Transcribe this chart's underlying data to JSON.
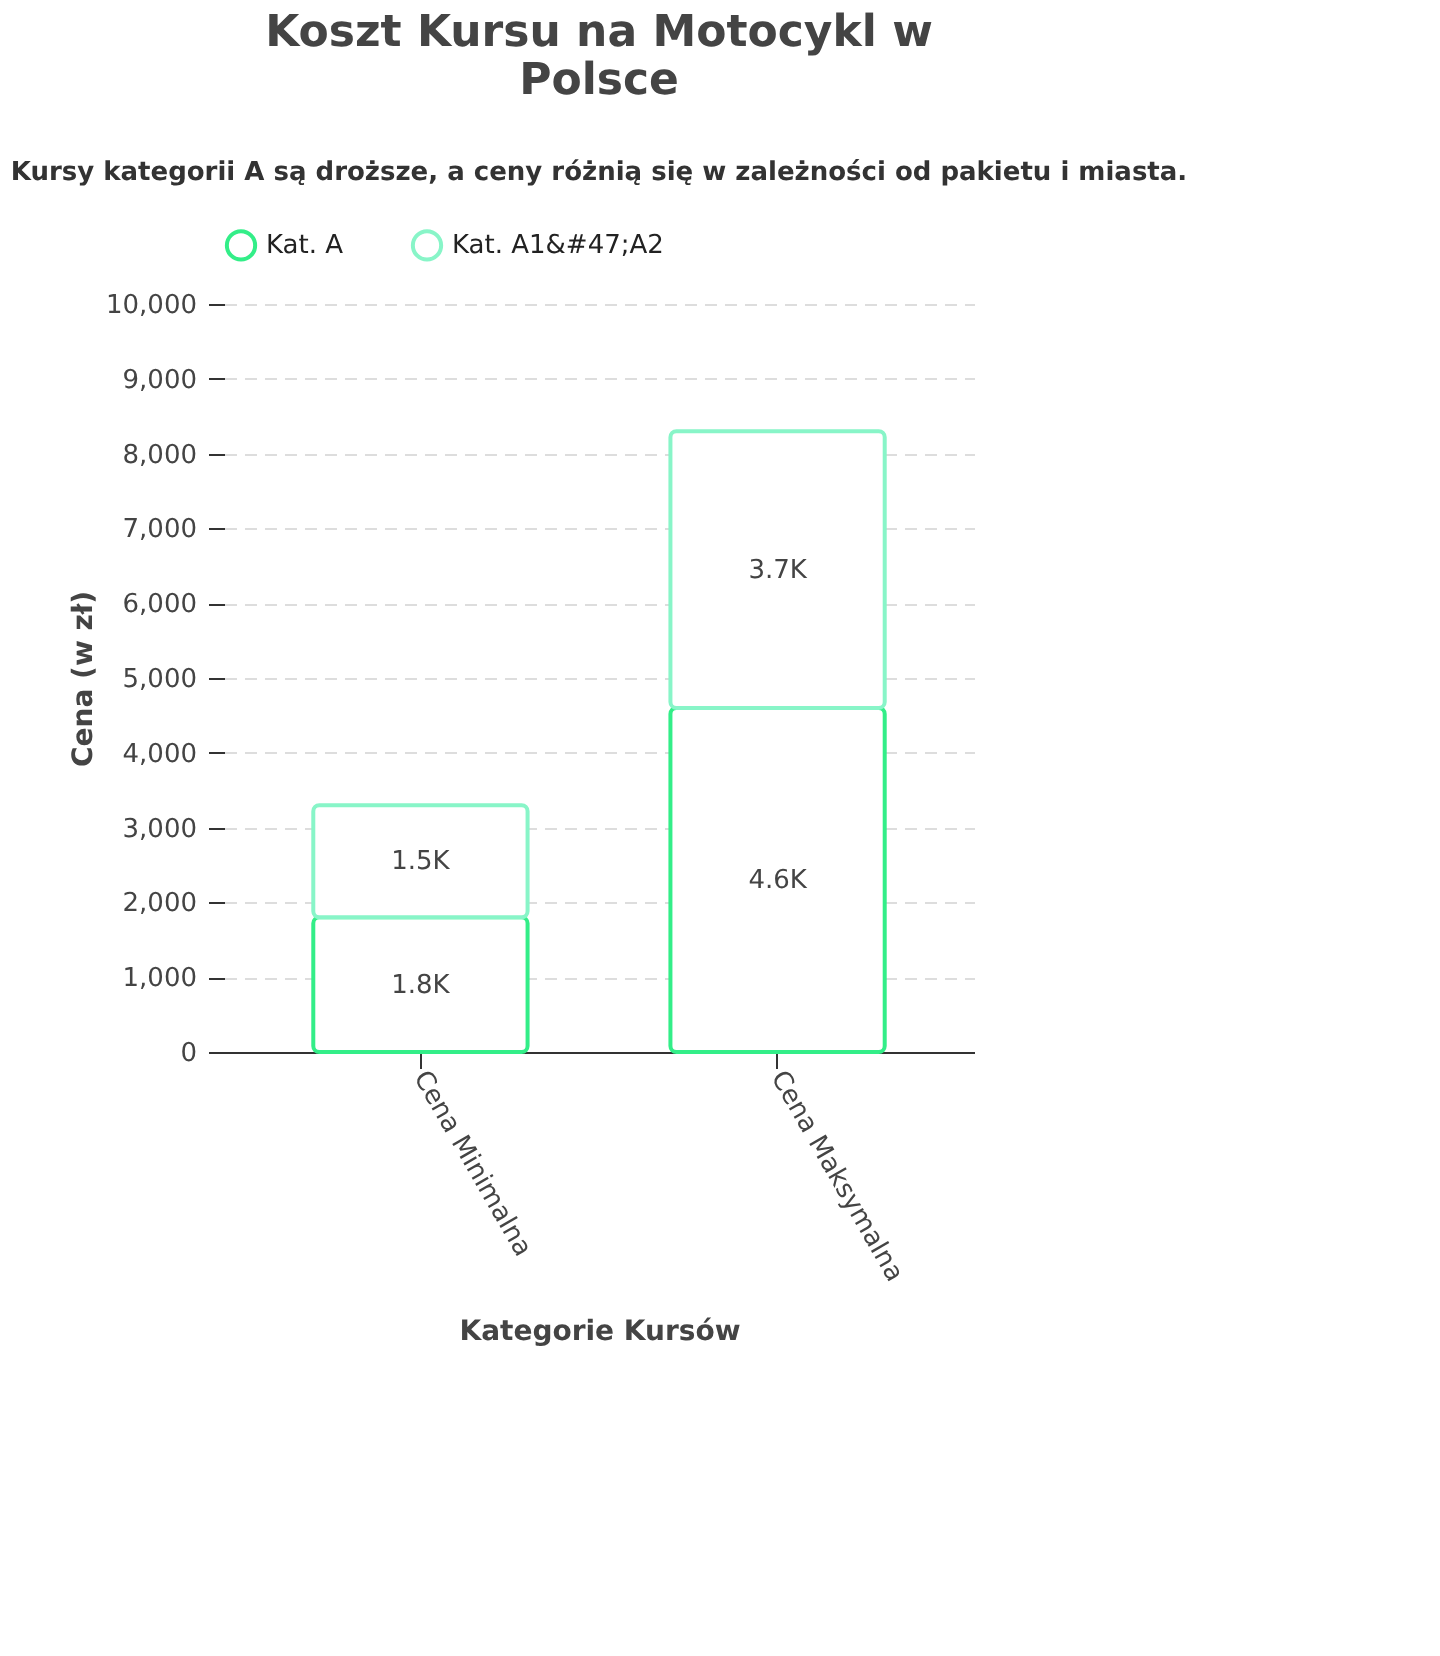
{
  "chart_data": {
    "type": "bar",
    "title": "Koszt Kursu na Motocykl w Polsce",
    "subtitle": "Kursy kategorii A są droższe, a ceny różnią się w zależności od pakietu i miasta.",
    "xlabel": "Kategorie Kursów",
    "ylabel": "Cena (w zł)",
    "categories": [
      "Cena Minimalna",
      "Cena Maksymalna"
    ],
    "stacked": true,
    "series": [
      {
        "name": "Kat. A",
        "color": "#33ee88",
        "values": [
          1800,
          4600
        ],
        "value_labels": [
          "1.8K",
          "4.6K"
        ]
      },
      {
        "name": "Kat. A1&#47;A2",
        "color": "#88f5c8",
        "values": [
          1500,
          3700
        ],
        "value_labels": [
          "1.5K",
          "3.7K"
        ]
      }
    ],
    "ylim": [
      0,
      10000
    ],
    "yticks": [
      0,
      {
        "value": 1000,
        "label": "1,000"
      },
      {
        "value": 2000,
        "label": "2,000"
      },
      {
        "value": 3000,
        "label": "3,000"
      },
      {
        "value": 4000,
        "label": "4,000"
      },
      {
        "value": 5000,
        "label": "5,000"
      },
      {
        "value": 6000,
        "label": "6,000"
      },
      {
        "value": 7000,
        "label": "7,000"
      },
      {
        "value": 8000,
        "label": "8,000"
      },
      {
        "value": 9000,
        "label": "9,000"
      },
      {
        "value": 10000,
        "label": "10,000"
      }
    ],
    "grid": "y",
    "legend": "top"
  }
}
